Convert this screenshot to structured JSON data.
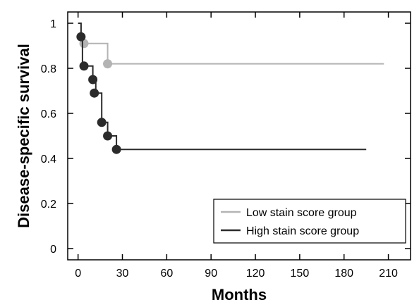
{
  "chart_data": {
    "type": "line",
    "title": "",
    "xlabel": "Months",
    "ylabel": "Disease-specific survival",
    "xlim": [
      -7,
      225
    ],
    "ylim": [
      -0.05,
      1.05
    ],
    "xticks": [
      0,
      30,
      60,
      90,
      120,
      150,
      180,
      210
    ],
    "yticks": [
      0,
      0.2,
      0.4,
      0.6,
      0.8,
      1
    ],
    "ytick_labels": [
      "0",
      "0.2",
      "0.4",
      "0.6",
      "0.8",
      "1"
    ],
    "grid": false,
    "legend_position": "bottom-right",
    "series": [
      {
        "name": "Low stain score group",
        "color": "#b3b3b3",
        "steps": [
          [
            0,
            1
          ],
          [
            2,
            1
          ],
          [
            2,
            0.91
          ],
          [
            20,
            0.91
          ],
          [
            20,
            0.82
          ],
          [
            207,
            0.82
          ]
        ],
        "markers": [
          [
            4,
            0.91
          ],
          [
            20,
            0.82
          ]
        ]
      },
      {
        "name": "High stain score group",
        "color": "#2b2b2b",
        "steps": [
          [
            0,
            1
          ],
          [
            2,
            1
          ],
          [
            2,
            0.94
          ],
          [
            3,
            0.94
          ],
          [
            3,
            0.81
          ],
          [
            10,
            0.81
          ],
          [
            10,
            0.75
          ],
          [
            12,
            0.75
          ],
          [
            12,
            0.69
          ],
          [
            16,
            0.69
          ],
          [
            16,
            0.56
          ],
          [
            20,
            0.56
          ],
          [
            20,
            0.5
          ],
          [
            26,
            0.5
          ],
          [
            26,
            0.44
          ],
          [
            195,
            0.44
          ]
        ],
        "markers": [
          [
            2,
            0.94
          ],
          [
            4,
            0.81
          ],
          [
            10,
            0.75
          ],
          [
            11,
            0.69
          ],
          [
            16,
            0.56
          ],
          [
            20,
            0.5
          ],
          [
            26,
            0.44
          ]
        ]
      }
    ]
  }
}
